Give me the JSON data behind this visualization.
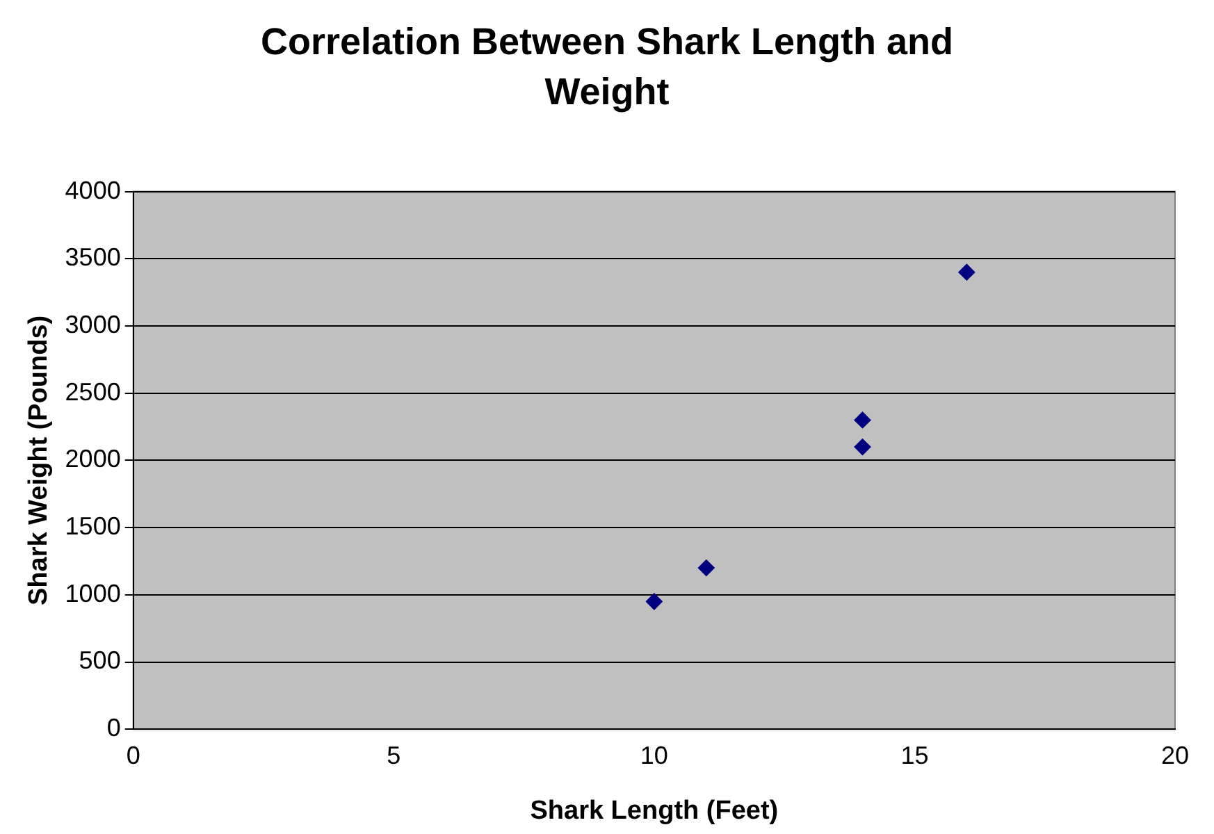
{
  "chart_data": {
    "type": "scatter",
    "title": "Correlation Between Shark Length and Weight",
    "xlabel": "Shark Length (Feet)",
    "ylabel": "Shark Weight (Pounds)",
    "x": [
      10,
      11,
      14,
      14,
      16
    ],
    "series": [
      {
        "color": "#000080",
        "values": [
          950,
          1200,
          2300,
          2100,
          3400
        ]
      }
    ],
    "xlim": [
      0,
      20
    ],
    "xticks": [
      0,
      5,
      10,
      15,
      20
    ],
    "ylim": [
      0,
      4000
    ],
    "yticks": [
      0,
      500,
      1000,
      1500,
      2000,
      2500,
      3000,
      3500,
      4000
    ],
    "grid": "y",
    "legend": false,
    "marker": "diamond"
  }
}
